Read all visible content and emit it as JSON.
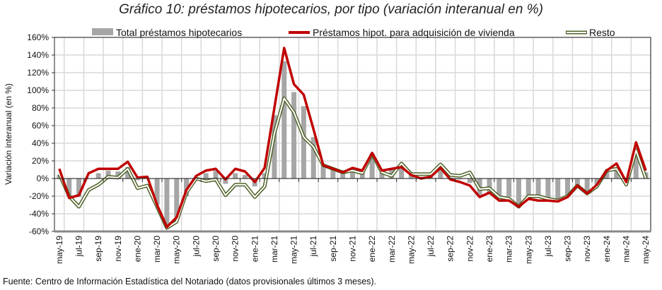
{
  "chart_data": {
    "type": "bar+line",
    "title": "Gráfico 10: préstamos hipotecarios, por tipo (variación interanual en %)",
    "ylabel": "Variación interanual (en %)",
    "xlabel": "",
    "ylim": [
      -60,
      160
    ],
    "yticks": [
      "160%",
      "140%",
      "120%",
      "100%",
      "80%",
      "60%",
      "40%",
      "20%",
      "0%",
      "-20%",
      "-40%",
      "-60%"
    ],
    "ytick_values": [
      160,
      140,
      120,
      100,
      80,
      60,
      40,
      20,
      0,
      -20,
      -40,
      -60
    ],
    "grid": true,
    "legend_position": "top",
    "x_tick_labels": [
      "may-19",
      "jul-19",
      "sep-19",
      "nov-19",
      "ene-20",
      "mar-20",
      "may-20",
      "jul-20",
      "sep-20",
      "nov-20",
      "ene-21",
      "mar-21",
      "may-21",
      "jul-21",
      "sep-21",
      "nov-21",
      "ene-22",
      "mar-22",
      "may-22",
      "jul-22",
      "sep-22",
      "nov-22",
      "ene-23",
      "mar-23",
      "may-23",
      "jul-23",
      "sep-23",
      "nov-23",
      "ene-24",
      "mar-24",
      "may-24"
    ],
    "n_points": 61,
    "series": [
      {
        "name": "Total préstamos hipotecarios",
        "kind": "bar",
        "color": "#a6a6a6",
        "values": [
          4,
          -20,
          -21,
          0,
          6,
          9,
          8,
          13,
          -2,
          0,
          -30,
          -52,
          -44,
          -20,
          0,
          6,
          9,
          -6,
          6,
          4,
          -9,
          6,
          72,
          133,
          98,
          82,
          47,
          15,
          11,
          7,
          9,
          8,
          28,
          8,
          10,
          15,
          5,
          2,
          2,
          14,
          1,
          -1,
          -5,
          -19,
          -16,
          -21,
          -21,
          -32,
          -22,
          -22,
          -24,
          -25,
          -20,
          -8,
          -17,
          -7,
          8,
          11,
          -5,
          35,
          7
        ]
      },
      {
        "name": "Préstamos hipot. para adquisición de vivienda",
        "kind": "line",
        "color": "#c00000",
        "values": [
          11,
          -22,
          -19,
          6,
          11,
          11,
          11,
          19,
          1,
          2,
          -30,
          -55,
          -44,
          -13,
          3,
          9,
          11,
          -1,
          11,
          8,
          -4,
          12,
          80,
          148,
          107,
          95,
          56,
          15,
          11,
          7,
          12,
          9,
          29,
          9,
          11,
          13,
          4,
          0,
          2,
          12,
          -1,
          -4,
          -8,
          -21,
          -16,
          -25,
          -25,
          -32,
          -23,
          -25,
          -25,
          -26,
          -21,
          -8,
          -17,
          -7,
          9,
          17,
          -4,
          41,
          9
        ]
      },
      {
        "name": "Resto",
        "kind": "double-line",
        "color": "#4f6228",
        "values": [
          5,
          -20,
          -32,
          -13,
          -7,
          2,
          1,
          11,
          -11,
          -8,
          -32,
          -56,
          -49,
          -16,
          0,
          -3,
          -1,
          -19,
          -7,
          -7,
          -21,
          -9,
          51,
          91,
          75,
          47,
          36,
          15,
          11,
          7,
          9,
          6,
          28,
          7,
          3,
          17,
          5,
          5,
          5,
          16,
          4,
          3,
          7,
          -12,
          -11,
          -21,
          -23,
          -32,
          -20,
          -20,
          -23,
          -25,
          -20,
          -8,
          -17,
          -9,
          9,
          11,
          -7,
          32,
          0
        ]
      }
    ]
  },
  "source": "Fuente: Centro de Información Estadística del Notariado (datos provisionales últimos 3 meses)."
}
